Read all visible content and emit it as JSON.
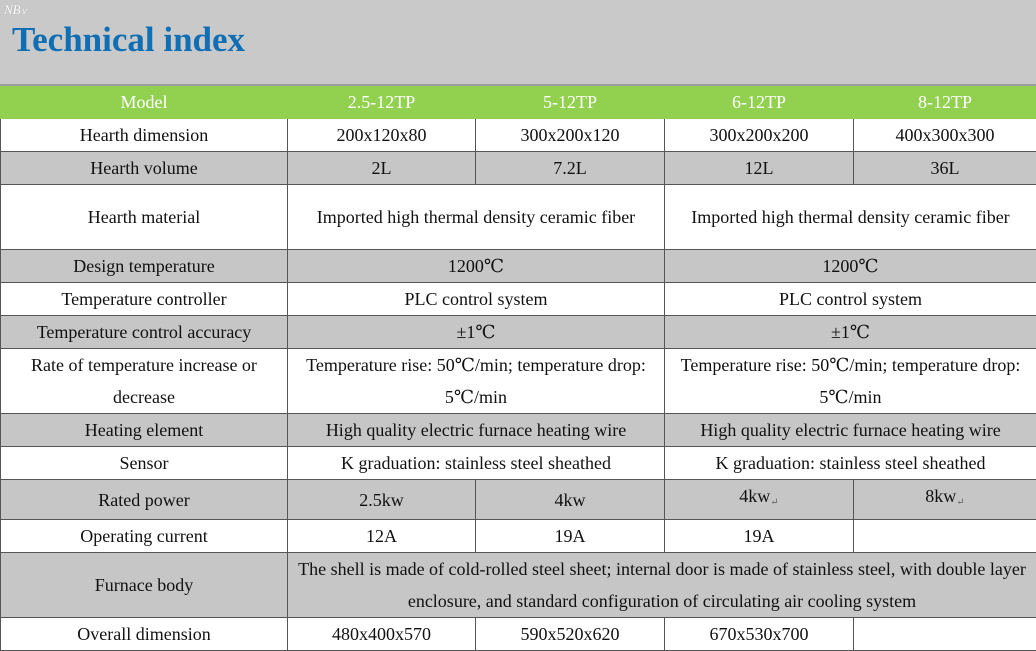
{
  "logo_text": "NB",
  "title": "Technical index",
  "table": {
    "header": {
      "label": "Model",
      "cols": [
        "2.5-12TP",
        "5-12TP",
        "6-12TP",
        "8-12TP"
      ]
    },
    "hearth_dimension": {
      "label": "Hearth dimension",
      "values": [
        "200x120x80",
        "300x200x120",
        "300x200x200",
        "400x300x300"
      ]
    },
    "hearth_volume": {
      "label": "Hearth volume",
      "values": [
        "2L",
        "7.2L",
        "12L",
        "36L"
      ]
    },
    "hearth_material": {
      "label": "Hearth material",
      "left": "Imported high thermal density ceramic fiber",
      "right": "Imported high thermal density ceramic fiber"
    },
    "design_temperature": {
      "label": "Design temperature",
      "left": "1200℃",
      "right": "1200℃"
    },
    "temperature_controller": {
      "label": "Temperature controller",
      "left": "PLC control system",
      "right": "PLC control system"
    },
    "control_accuracy": {
      "label": "Temperature control accuracy",
      "left": "±1℃",
      "right": "±1℃"
    },
    "rate": {
      "label": "Rate of temperature increase or decrease",
      "left": "Temperature rise: 50℃/min; temperature drop: 5℃/min",
      "right": "Temperature rise: 50℃/min; temperature drop: 5℃/min"
    },
    "heating_element": {
      "label": "Heating element",
      "left": "High quality electric furnace heating wire",
      "right": "High quality electric furnace heating wire"
    },
    "sensor": {
      "label": "Sensor",
      "left": "K graduation: stainless steel sheathed",
      "right": "K graduation: stainless steel sheathed"
    },
    "rated_power": {
      "label": "Rated power",
      "values": [
        "2.5kw",
        "4kw",
        "4kw",
        "8kw"
      ],
      "mark": "↵"
    },
    "operating_current": {
      "label": "Operating current",
      "values": [
        "12A",
        "19A",
        "19A",
        ""
      ]
    },
    "furnace_body": {
      "label": "Furnace body",
      "text": "The shell is made of cold-rolled steel sheet; internal door is made of stainless steel, with double layer enclosure, and standard configuration of circulating air cooling system"
    },
    "overall_dimension": {
      "label": "Overall dimension",
      "values": [
        "480x400x570",
        "590x520x620",
        "670x530x700",
        ""
      ]
    }
  }
}
